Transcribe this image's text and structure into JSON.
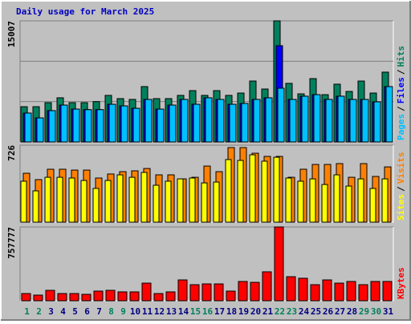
{
  "chart_data": [
    {
      "type": "bar",
      "title": "Daily usage for March 2025",
      "ylim": [
        0,
        15007
      ],
      "yticks": [
        15007
      ],
      "grid": true,
      "legend_separator": "/",
      "series": [
        {
          "name": "Hits",
          "color": "#00805c",
          "values": [
            4370,
            4370,
            4870,
            5470,
            4870,
            4870,
            5000,
            5770,
            5370,
            5270,
            6860,
            5370,
            5370,
            5770,
            6360,
            5770,
            6360,
            5770,
            6060,
            7550,
            6560,
            15007,
            7260,
            5960,
            7850,
            5860,
            7160,
            6260,
            7550,
            6060,
            8650
          ]
        },
        {
          "name": "Files",
          "color": "#0000ff",
          "values": [
            3580,
            2980,
            3880,
            4570,
            4070,
            4000,
            4000,
            4670,
            4470,
            4170,
            5270,
            4070,
            4570,
            5270,
            4670,
            5470,
            5270,
            4670,
            4770,
            5270,
            5470,
            11930,
            5270,
            5670,
            5860,
            5270,
            5670,
            5270,
            5270,
            4970,
            6860
          ]
        },
        {
          "name": "Pages",
          "color": "#00c0ff",
          "values": [
            3580,
            2980,
            3880,
            4570,
            4070,
            4000,
            4000,
            4670,
            4470,
            4170,
            5270,
            4070,
            4570,
            5270,
            4670,
            5470,
            5270,
            4670,
            4770,
            5270,
            5470,
            6660,
            5270,
            5670,
            5860,
            5270,
            5670,
            5270,
            5270,
            4970,
            6860
          ]
        }
      ]
    },
    {
      "type": "bar",
      "ylim": [
        0,
        726
      ],
      "yticks": [
        726
      ],
      "legend_separator": "/",
      "series": [
        {
          "name": "Visits",
          "color": "#ff8000",
          "values": [
            461,
            401,
            499,
            499,
            491,
            491,
            416,
            454,
            476,
            484,
            506,
            446,
            446,
            408,
            423,
            529,
            476,
            703,
            703,
            650,
            620,
            620,
            423,
            499,
            544,
            544,
            552,
            423,
            552,
            431,
            521
          ]
        },
        {
          "name": "Sites",
          "color": "#ffff00",
          "values": [
            386,
            295,
            423,
            423,
            416,
            393,
            318,
            393,
            446,
            423,
            469,
            348,
            386,
            408,
            416,
            370,
            378,
            590,
            582,
            635,
            575,
            612,
            416,
            386,
            408,
            355,
            446,
            340,
            408,
            318,
            408
          ]
        }
      ]
    },
    {
      "type": "bar",
      "ylim": [
        0,
        757777
      ],
      "yticks": [
        757777
      ],
      "categories": [
        "1",
        "2",
        "3",
        "4",
        "5",
        "6",
        "7",
        "8",
        "9",
        "10",
        "11",
        "12",
        "13",
        "14",
        "15",
        "16",
        "17",
        "18",
        "19",
        "20",
        "21",
        "22",
        "23",
        "24",
        "25",
        "26",
        "27",
        "28",
        "29",
        "30",
        "31"
      ],
      "category_colors": [
        "#00805c",
        "#00805c",
        "#000080",
        "#000080",
        "#000080",
        "#000080",
        "#000080",
        "#00805c",
        "#00805c",
        "#000080",
        "#000080",
        "#000080",
        "#000080",
        "#000080",
        "#00805c",
        "#00805c",
        "#000080",
        "#000080",
        "#000080",
        "#000080",
        "#000080",
        "#00805c",
        "#00805c",
        "#000080",
        "#000080",
        "#000080",
        "#000080",
        "#000080",
        "#00805c",
        "#00805c",
        "#000080"
      ],
      "series": [
        {
          "name": "KBytes",
          "color": "#ff0000",
          "values": [
            74000,
            58000,
            107000,
            74000,
            74000,
            66000,
            99000,
            107000,
            91000,
            91000,
            181000,
            74000,
            91000,
            214000,
            165000,
            173000,
            173000,
            99000,
            198000,
            189000,
            297000,
            757777,
            247000,
            231000,
            165000,
            214000,
            181000,
            198000,
            165000,
            198000,
            198000
          ]
        }
      ]
    }
  ]
}
